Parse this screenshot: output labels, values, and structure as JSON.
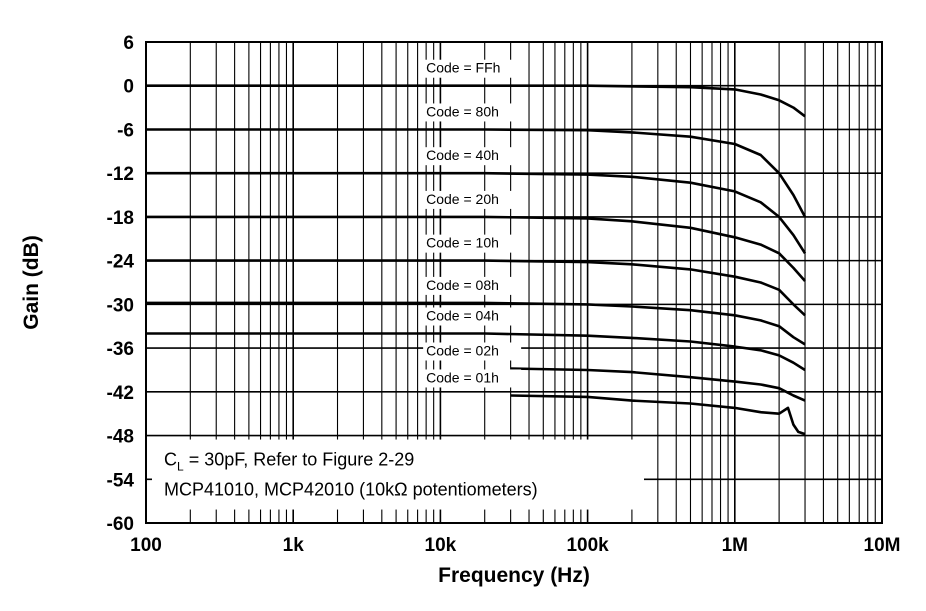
{
  "chart_data": {
    "type": "line",
    "title": "",
    "xlabel": "Frequency (Hz)",
    "ylabel": "Gain (dB)",
    "x_scale": "log",
    "xlim": [
      100,
      10000000
    ],
    "ylim": [
      -60,
      6
    ],
    "grid": true,
    "x_ticks": [
      "100",
      "1k",
      "10k",
      "100k",
      "1M",
      "10M"
    ],
    "y_ticks": [
      "6",
      "0",
      "-6",
      "-12",
      "-18",
      "-24",
      "-30",
      "-36",
      "-42",
      "-48",
      "-54",
      "-60"
    ],
    "annotations": [
      {
        "base": "C",
        "sub": "L",
        "rest": " = 30pF, Refer to Figure 2-29"
      },
      {
        "text": "MCP41010, MCP42010 (10kΩ potentiometers)"
      }
    ],
    "series": [
      {
        "name": "Code = FFh",
        "points": [
          [
            100,
            0
          ],
          [
            100000,
            0
          ],
          [
            500000,
            -0.2
          ],
          [
            1000000,
            -0.5
          ],
          [
            1500000,
            -1.2
          ],
          [
            2000000,
            -2
          ],
          [
            2500000,
            -3
          ],
          [
            3000000,
            -4.2
          ]
        ]
      },
      {
        "name": "Code = 80h",
        "points": [
          [
            100,
            -6
          ],
          [
            20000,
            -6
          ],
          [
            100000,
            -6.1
          ],
          [
            200000,
            -6.4
          ],
          [
            500000,
            -7
          ],
          [
            1000000,
            -8
          ],
          [
            1500000,
            -9.5
          ],
          [
            2000000,
            -12
          ],
          [
            2500000,
            -15
          ],
          [
            3000000,
            -18
          ]
        ]
      },
      {
        "name": "Code = 40h",
        "points": [
          [
            100,
            -12
          ],
          [
            20000,
            -12
          ],
          [
            100000,
            -12.2
          ],
          [
            200000,
            -12.5
          ],
          [
            500000,
            -13.3
          ],
          [
            1000000,
            -14.5
          ],
          [
            1500000,
            -16
          ],
          [
            2000000,
            -18
          ],
          [
            2500000,
            -20.5
          ],
          [
            3000000,
            -23
          ]
        ]
      },
      {
        "name": "Code = 20h",
        "points": [
          [
            100,
            -18
          ],
          [
            20000,
            -18
          ],
          [
            100000,
            -18.2
          ],
          [
            200000,
            -18.6
          ],
          [
            500000,
            -19.5
          ],
          [
            1000000,
            -20.8
          ],
          [
            1500000,
            -21.8
          ],
          [
            2000000,
            -23
          ],
          [
            2500000,
            -25
          ],
          [
            3000000,
            -26.8
          ]
        ]
      },
      {
        "name": "Code = 10h",
        "points": [
          [
            100,
            -24
          ],
          [
            20000,
            -24
          ],
          [
            100000,
            -24.2
          ],
          [
            200000,
            -24.5
          ],
          [
            500000,
            -25.2
          ],
          [
            1000000,
            -26.2
          ],
          [
            1500000,
            -27
          ],
          [
            2000000,
            -28
          ],
          [
            2500000,
            -30
          ],
          [
            3000000,
            -31.5
          ]
        ]
      },
      {
        "name": "Code = 08h",
        "points": [
          [
            100,
            -29.8
          ],
          [
            20000,
            -29.8
          ],
          [
            100000,
            -30
          ],
          [
            200000,
            -30.3
          ],
          [
            500000,
            -30.8
          ],
          [
            1000000,
            -31.5
          ],
          [
            1500000,
            -32.2
          ],
          [
            2000000,
            -33
          ],
          [
            2500000,
            -34.5
          ],
          [
            3000000,
            -35.5
          ]
        ]
      },
      {
        "name": "Code = 04h",
        "points": [
          [
            100,
            -34
          ],
          [
            20000,
            -34
          ],
          [
            100000,
            -34.3
          ],
          [
            200000,
            -34.6
          ],
          [
            500000,
            -35.1
          ],
          [
            1000000,
            -35.8
          ],
          [
            1500000,
            -36.3
          ],
          [
            2000000,
            -37
          ],
          [
            2500000,
            -38
          ],
          [
            3000000,
            -39
          ]
        ]
      },
      {
        "name": "Code = 02h",
        "points": [
          [
            30000,
            -38.8
          ],
          [
            100000,
            -39
          ],
          [
            200000,
            -39.3
          ],
          [
            500000,
            -40
          ],
          [
            1000000,
            -40.6
          ],
          [
            1500000,
            -41
          ],
          [
            2000000,
            -41.5
          ],
          [
            2500000,
            -42.5
          ],
          [
            3000000,
            -43.2
          ]
        ]
      },
      {
        "name": "Code = 01h",
        "points": [
          [
            30000,
            -42.5
          ],
          [
            100000,
            -42.7
          ],
          [
            200000,
            -43.2
          ],
          [
            500000,
            -43.6
          ],
          [
            1000000,
            -44.2
          ],
          [
            1500000,
            -44.8
          ],
          [
            2000000,
            -45
          ],
          [
            2300000,
            -44.2
          ],
          [
            2500000,
            -46.5
          ],
          [
            2700000,
            -47.5
          ],
          [
            3000000,
            -47.8
          ]
        ]
      }
    ]
  }
}
